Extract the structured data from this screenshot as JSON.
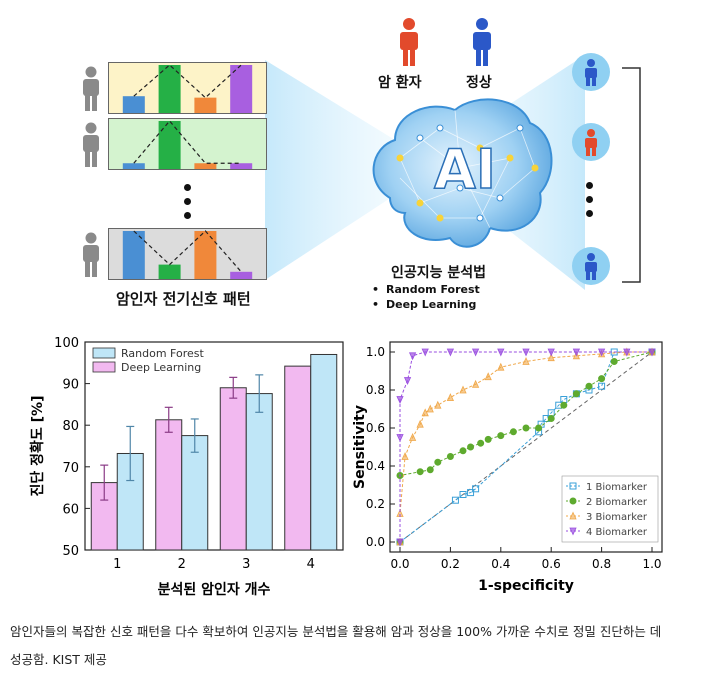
{
  "top": {
    "panel_label": "암인자 전기신호 패턴",
    "patient_label": "암 환자",
    "normal_label": "정상",
    "ai_text": "AI",
    "method_title": "인공지능 분석법",
    "methods": [
      "Random Forest",
      "Deep Learning"
    ],
    "bullet": "•",
    "panel_colors": [
      "#fdf3c8",
      "#d4f3cf",
      "#dcdcdc"
    ],
    "bar_colors": [
      "#4a8fd3",
      "#25b046",
      "#f0883a",
      "#a85fe0"
    ],
    "panel_bar_levels": [
      [
        0.35,
        1.0,
        0.32,
        1.0
      ],
      [
        0.12,
        1.0,
        0.12,
        0.12
      ],
      [
        1.0,
        0.3,
        1.0,
        0.15
      ]
    ],
    "right_people": [
      "normal",
      "patient",
      "normal"
    ]
  },
  "chart_data": [
    {
      "type": "bar",
      "categories": [
        "1",
        "2",
        "3",
        "4"
      ],
      "series": [
        {
          "name": "Random Forest",
          "values": [
            73.2,
            77.5,
            87.6,
            97.0
          ],
          "errors": [
            6.5,
            4.0,
            4.5,
            0
          ],
          "color": "#bfe6f7"
        },
        {
          "name": "Deep Learning",
          "values": [
            66.2,
            81.3,
            89.0,
            94.2
          ],
          "errors": [
            4.2,
            3.0,
            2.5,
            0
          ],
          "color": "#f2b9f0"
        }
      ],
      "xlabel": "분석된 암인자 개수",
      "ylabel": "진단 정확도 [%]",
      "ylim": [
        50,
        100
      ],
      "yticks": [
        "50",
        "60",
        "70",
        "80",
        "90",
        "100"
      ],
      "legend_position": "top-left"
    },
    {
      "type": "line",
      "xlabel": "1-specificity",
      "ylabel": "Sensitivity",
      "xlim": [
        0,
        1
      ],
      "ylim": [
        0,
        1
      ],
      "xticks": [
        "0.0",
        "0.2",
        "0.4",
        "0.6",
        "0.8",
        "1.0"
      ],
      "yticks": [
        "0.0",
        "0.2",
        "0.4",
        "0.6",
        "0.8",
        "1.0"
      ],
      "legend_position": "bottom-right",
      "series": [
        {
          "name": "1 Biomarker",
          "color": "#3aa0d8",
          "marker": "square",
          "x": [
            0,
            0.22,
            0.25,
            0.28,
            0.3,
            0.55,
            0.56,
            0.58,
            0.6,
            0.63,
            0.65,
            0.7,
            0.75,
            0.8,
            0.85,
            1.0
          ],
          "y": [
            0,
            0.22,
            0.25,
            0.26,
            0.28,
            0.58,
            0.62,
            0.65,
            0.68,
            0.72,
            0.75,
            0.78,
            0.8,
            0.82,
            1.0,
            1.0
          ]
        },
        {
          "name": "2 Biomarker",
          "color": "#5eaa2e",
          "marker": "circle",
          "x": [
            0,
            0,
            0.08,
            0.12,
            0.15,
            0.2,
            0.25,
            0.28,
            0.32,
            0.35,
            0.4,
            0.45,
            0.5,
            0.55,
            0.6,
            0.65,
            0.7,
            0.75,
            0.8,
            0.85,
            1.0
          ],
          "y": [
            0,
            0.35,
            0.37,
            0.38,
            0.42,
            0.45,
            0.48,
            0.5,
            0.52,
            0.54,
            0.56,
            0.58,
            0.6,
            0.6,
            0.65,
            0.72,
            0.78,
            0.82,
            0.86,
            0.95,
            1.0
          ]
        },
        {
          "name": "3 Biomarker",
          "color": "#f0a84a",
          "marker": "triangle-up",
          "x": [
            0,
            0,
            0.02,
            0.05,
            0.08,
            0.1,
            0.12,
            0.15,
            0.2,
            0.25,
            0.3,
            0.35,
            0.4,
            0.5,
            0.6,
            0.7,
            0.8,
            0.9,
            1.0
          ],
          "y": [
            0,
            0.15,
            0.45,
            0.55,
            0.62,
            0.68,
            0.7,
            0.72,
            0.76,
            0.8,
            0.83,
            0.87,
            0.92,
            0.95,
            0.97,
            0.98,
            0.99,
            1.0,
            1.0
          ]
        },
        {
          "name": "4 Biomarker",
          "color": "#9a4fe0",
          "marker": "triangle-down",
          "x": [
            0,
            0,
            0,
            0.03,
            0.05,
            0.1,
            0.2,
            0.3,
            0.4,
            0.5,
            0.6,
            0.7,
            0.8,
            0.9,
            1.0
          ],
          "y": [
            0,
            0.55,
            0.75,
            0.85,
            0.98,
            1.0,
            1.0,
            1.0,
            1.0,
            1.0,
            1.0,
            1.0,
            1.0,
            1.0,
            1.0
          ]
        }
      ]
    }
  ],
  "caption": {
    "line1": "암인자들의 복잡한 신호 패턴을 다수 확보하여 인공지능 분석법을 활용해 암과 정상을 100% 가까운 수치로 정밀 진단하는 데",
    "line2": "성공함. KIST 제공"
  }
}
